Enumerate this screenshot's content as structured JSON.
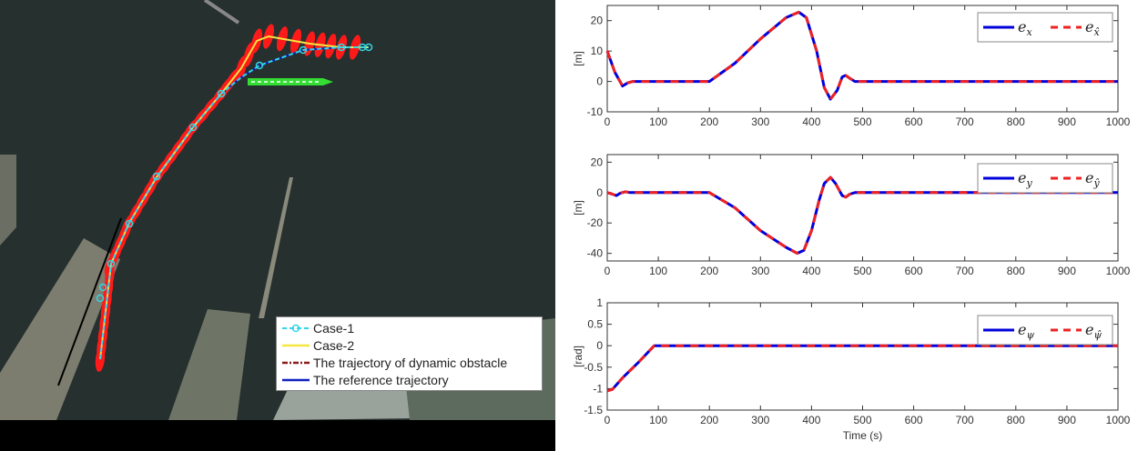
{
  "map_legend": {
    "items": [
      {
        "label": "Case-1",
        "color": "#33d6e6",
        "style": "dash-circle"
      },
      {
        "label": "Case-2",
        "color": "#f5e642",
        "style": "solid"
      },
      {
        "label": "The trajectory of dynamic obstacle",
        "color": "#8b1a1a",
        "style": "dash-dot"
      },
      {
        "label": "The  reference trajectory",
        "color": "#1020c0",
        "style": "solid"
      }
    ]
  },
  "map_colors": {
    "water": "#26302f",
    "ship": "#ff1a1a",
    "obstacle_ship": "#33dd33"
  },
  "chart_data": [
    {
      "type": "line",
      "ylabel": "[m]",
      "xlabel": "",
      "xlim": [
        0,
        1000
      ],
      "ylim": [
        -10,
        25
      ],
      "xticks": [
        0,
        100,
        200,
        300,
        400,
        500,
        600,
        700,
        800,
        900,
        1000
      ],
      "yticks": [
        -10,
        0,
        10,
        20
      ],
      "legend": {
        "placement": "top-right",
        "entries": [
          {
            "base": "e",
            "sub": "x"
          },
          {
            "base": "e",
            "sub": "x̂"
          }
        ]
      },
      "series": [
        {
          "name": "e_x",
          "color": "#0000dd",
          "style": "solid",
          "x": [
            0,
            15,
            30,
            40,
            50,
            200,
            250,
            300,
            350,
            375,
            390,
            410,
            425,
            437,
            450,
            460,
            467,
            475,
            485,
            1000
          ],
          "y": [
            10,
            3,
            -1.5,
            -0.5,
            0,
            0,
            6,
            14,
            21,
            22.8,
            21,
            10,
            -2,
            -5.8,
            -3,
            1.5,
            2,
            1,
            0,
            0
          ]
        },
        {
          "name": "e_x̂",
          "color": "#ee2222",
          "style": "dashed",
          "x": [
            0,
            15,
            30,
            40,
            50,
            200,
            250,
            300,
            350,
            375,
            390,
            410,
            425,
            437,
            450,
            460,
            467,
            475,
            485,
            1000
          ],
          "y": [
            10,
            3,
            -1.5,
            -0.5,
            0,
            0,
            6,
            14,
            21,
            22.8,
            21,
            10,
            -2,
            -5.8,
            -3,
            1.5,
            2,
            1,
            0,
            0
          ]
        }
      ]
    },
    {
      "type": "line",
      "ylabel": "[m]",
      "xlabel": "",
      "xlim": [
        0,
        1000
      ],
      "ylim": [
        -45,
        25
      ],
      "xticks": [
        0,
        100,
        200,
        300,
        400,
        500,
        600,
        700,
        800,
        900,
        1000
      ],
      "yticks": [
        -40,
        -20,
        0,
        20
      ],
      "legend": {
        "placement": "top-right",
        "entries": [
          {
            "base": "e",
            "sub": "y"
          },
          {
            "base": "e",
            "sub": "ŷ"
          }
        ]
      },
      "series": [
        {
          "name": "e_y",
          "color": "#0000dd",
          "style": "solid",
          "x": [
            0,
            10,
            18,
            25,
            35,
            45,
            200,
            250,
            300,
            350,
            372,
            385,
            400,
            415,
            425,
            437,
            447,
            460,
            467,
            475,
            485,
            1000
          ],
          "y": [
            0,
            -1,
            -2,
            -0.5,
            0.5,
            0,
            0,
            -10,
            -25,
            -36,
            -40,
            -38,
            -25,
            -5,
            6,
            10,
            6,
            -2,
            -3,
            -1,
            0,
            0
          ]
        },
        {
          "name": "e_ŷ",
          "color": "#ee2222",
          "style": "dashed",
          "x": [
            0,
            10,
            18,
            25,
            35,
            45,
            200,
            250,
            300,
            350,
            372,
            385,
            400,
            415,
            425,
            437,
            447,
            460,
            467,
            475,
            485,
            1000
          ],
          "y": [
            0,
            -1,
            -2,
            -0.5,
            0.5,
            0,
            0,
            -10,
            -25,
            -36,
            -40,
            -38,
            -25,
            -5,
            6,
            10,
            6,
            -2,
            -3,
            -1,
            0,
            0
          ]
        }
      ]
    },
    {
      "type": "line",
      "ylabel": "[rad]",
      "xlabel": "Time (s)",
      "xlim": [
        0,
        1000
      ],
      "ylim": [
        -1.5,
        1
      ],
      "xticks": [
        0,
        100,
        200,
        300,
        400,
        500,
        600,
        700,
        800,
        900,
        1000
      ],
      "yticks": [
        -1.5,
        -1,
        -0.5,
        0,
        0.5,
        1
      ],
      "legend": {
        "placement": "top-right",
        "entries": [
          {
            "base": "e",
            "sub": "ψ"
          },
          {
            "base": "e",
            "sub": "ψ̂"
          }
        ]
      },
      "series": [
        {
          "name": "e_ψ",
          "color": "#0000dd",
          "style": "solid",
          "x": [
            0,
            10,
            30,
            60,
            92,
            1000
          ],
          "y": [
            -1.05,
            -1.02,
            -0.75,
            -0.4,
            0,
            0
          ]
        },
        {
          "name": "e_ψ̂",
          "color": "#ee2222",
          "style": "dashed",
          "x": [
            0,
            10,
            30,
            60,
            92,
            1000
          ],
          "y": [
            -1.05,
            -1.02,
            -0.75,
            -0.4,
            0,
            0
          ]
        }
      ]
    }
  ]
}
